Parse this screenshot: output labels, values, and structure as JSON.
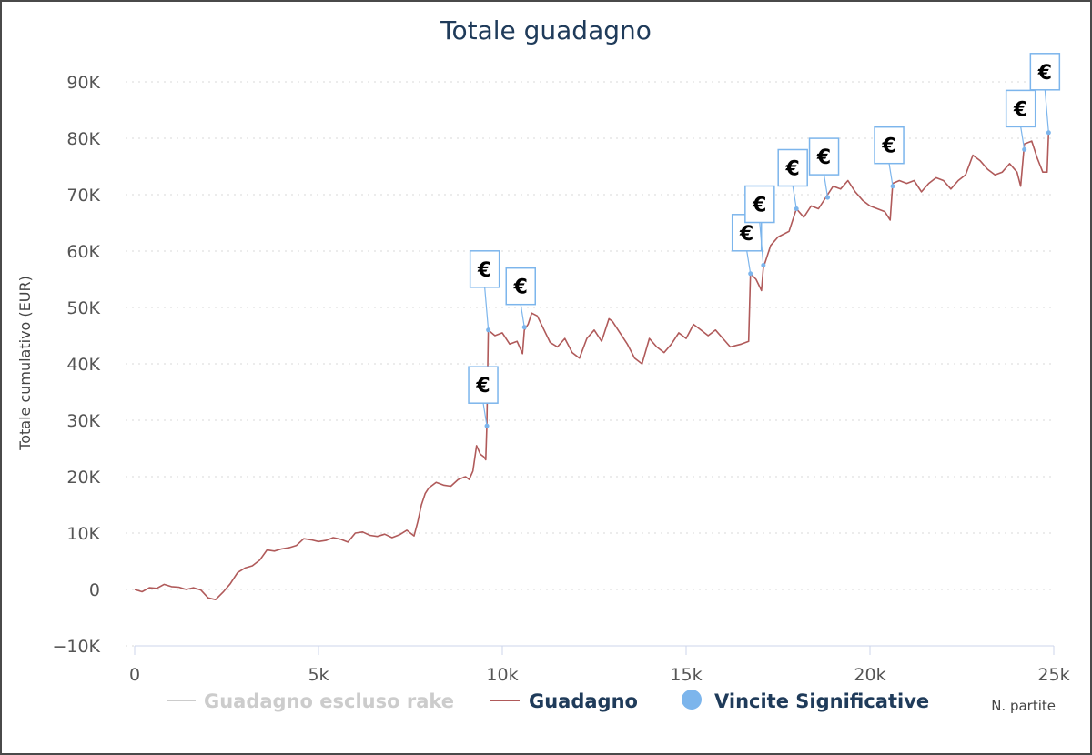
{
  "chart_data": {
    "type": "line",
    "title": "Totale guadagno",
    "xlabel": "N. partite",
    "ylabel": "Totale cumulativo (EUR)",
    "xlim": [
      0,
      25000
    ],
    "ylim": [
      -10000,
      90000
    ],
    "x_ticks": [
      {
        "value": 0,
        "label": "0"
      },
      {
        "value": 5000,
        "label": "5k"
      },
      {
        "value": 10000,
        "label": "10k"
      },
      {
        "value": 15000,
        "label": "15k"
      },
      {
        "value": 20000,
        "label": "20k"
      },
      {
        "value": 25000,
        "label": "25k"
      }
    ],
    "y_ticks": [
      {
        "value": -10000,
        "label": "−10K"
      },
      {
        "value": 0,
        "label": "0"
      },
      {
        "value": 10000,
        "label": "10K"
      },
      {
        "value": 20000,
        "label": "20K"
      },
      {
        "value": 30000,
        "label": "30K"
      },
      {
        "value": 40000,
        "label": "40K"
      },
      {
        "value": 50000,
        "label": "50K"
      },
      {
        "value": 60000,
        "label": "60K"
      },
      {
        "value": 70000,
        "label": "70K"
      },
      {
        "value": 80000,
        "label": "80K"
      },
      {
        "value": 90000,
        "label": "90K"
      }
    ],
    "grid": "horizontal-dotted",
    "legend": {
      "position": "bottom",
      "items": [
        {
          "label": "Guadagno escluso rake",
          "marker": "line",
          "color": "#cccccc",
          "hidden": true
        },
        {
          "label": "Guadagno",
          "marker": "line",
          "color": "#b05a5a",
          "hidden": false
        },
        {
          "label": "Vincite Significative",
          "marker": "circle",
          "color": "#7cb5ec",
          "hidden": false
        }
      ]
    },
    "series": [
      {
        "name": "Guadagno",
        "color": "#b05a5a",
        "points": [
          [
            0,
            0
          ],
          [
            200,
            -400
          ],
          [
            400,
            300
          ],
          [
            600,
            200
          ],
          [
            800,
            900
          ],
          [
            1000,
            500
          ],
          [
            1200,
            400
          ],
          [
            1400,
            0
          ],
          [
            1600,
            300
          ],
          [
            1800,
            -100
          ],
          [
            2000,
            -1500
          ],
          [
            2200,
            -1800
          ],
          [
            2400,
            -500
          ],
          [
            2600,
            1000
          ],
          [
            2800,
            3000
          ],
          [
            3000,
            3800
          ],
          [
            3200,
            4200
          ],
          [
            3400,
            5200
          ],
          [
            3600,
            7000
          ],
          [
            3800,
            6800
          ],
          [
            4000,
            7200
          ],
          [
            4200,
            7400
          ],
          [
            4400,
            7800
          ],
          [
            4600,
            9000
          ],
          [
            4800,
            8800
          ],
          [
            5000,
            8500
          ],
          [
            5200,
            8700
          ],
          [
            5400,
            9200
          ],
          [
            5600,
            8900
          ],
          [
            5800,
            8400
          ],
          [
            6000,
            10000
          ],
          [
            6200,
            10200
          ],
          [
            6400,
            9600
          ],
          [
            6600,
            9400
          ],
          [
            6800,
            9800
          ],
          [
            7000,
            9200
          ],
          [
            7200,
            9700
          ],
          [
            7400,
            10500
          ],
          [
            7600,
            9500
          ],
          [
            7700,
            12000
          ],
          [
            7800,
            15000
          ],
          [
            7900,
            17000
          ],
          [
            8000,
            18000
          ],
          [
            8200,
            19000
          ],
          [
            8400,
            18500
          ],
          [
            8600,
            18300
          ],
          [
            8800,
            19500
          ],
          [
            9000,
            20000
          ],
          [
            9100,
            19500
          ],
          [
            9200,
            21000
          ],
          [
            9300,
            25500
          ],
          [
            9400,
            24000
          ],
          [
            9500,
            23500
          ],
          [
            9550,
            23000
          ],
          [
            9580,
            29000
          ],
          [
            9620,
            46000
          ],
          [
            9800,
            45000
          ],
          [
            10000,
            45500
          ],
          [
            10200,
            43500
          ],
          [
            10400,
            44000
          ],
          [
            10550,
            41800
          ],
          [
            10600,
            46000
          ],
          [
            10700,
            47000
          ],
          [
            10800,
            49000
          ],
          [
            10950,
            48500
          ],
          [
            11100,
            46500
          ],
          [
            11300,
            43800
          ],
          [
            11500,
            43000
          ],
          [
            11700,
            44500
          ],
          [
            11900,
            42000
          ],
          [
            12100,
            41000
          ],
          [
            12300,
            44500
          ],
          [
            12500,
            46000
          ],
          [
            12700,
            44000
          ],
          [
            12900,
            48000
          ],
          [
            13000,
            47500
          ],
          [
            13200,
            45500
          ],
          [
            13400,
            43500
          ],
          [
            13600,
            41000
          ],
          [
            13800,
            40000
          ],
          [
            14000,
            44500
          ],
          [
            14200,
            43000
          ],
          [
            14400,
            42000
          ],
          [
            14600,
            43500
          ],
          [
            14800,
            45500
          ],
          [
            15000,
            44500
          ],
          [
            15200,
            47000
          ],
          [
            15400,
            46000
          ],
          [
            15600,
            45000
          ],
          [
            15800,
            46000
          ],
          [
            16000,
            44500
          ],
          [
            16200,
            43000
          ],
          [
            16500,
            43500
          ],
          [
            16700,
            44000
          ],
          [
            16750,
            56000
          ],
          [
            16900,
            55000
          ],
          [
            17050,
            53000
          ],
          [
            17100,
            57000
          ],
          [
            17300,
            61000
          ],
          [
            17500,
            62500
          ],
          [
            17800,
            63500
          ],
          [
            18000,
            67500
          ],
          [
            18200,
            66000
          ],
          [
            18400,
            68000
          ],
          [
            18600,
            67500
          ],
          [
            18850,
            70000
          ],
          [
            19000,
            71500
          ],
          [
            19200,
            71000
          ],
          [
            19400,
            72500
          ],
          [
            19600,
            70500
          ],
          [
            19800,
            69000
          ],
          [
            20000,
            68000
          ],
          [
            20200,
            67500
          ],
          [
            20400,
            67000
          ],
          [
            20550,
            65500
          ],
          [
            20620,
            72000
          ],
          [
            20800,
            72500
          ],
          [
            21000,
            72000
          ],
          [
            21200,
            72500
          ],
          [
            21400,
            70500
          ],
          [
            21600,
            72000
          ],
          [
            21800,
            73000
          ],
          [
            22000,
            72500
          ],
          [
            22200,
            71000
          ],
          [
            22400,
            72500
          ],
          [
            22600,
            73500
          ],
          [
            22800,
            77000
          ],
          [
            23000,
            76000
          ],
          [
            23200,
            74500
          ],
          [
            23400,
            73500
          ],
          [
            23600,
            74000
          ],
          [
            23800,
            75500
          ],
          [
            24000,
            74000
          ],
          [
            24100,
            71500
          ],
          [
            24200,
            79000
          ],
          [
            24400,
            79500
          ],
          [
            24550,
            76500
          ],
          [
            24700,
            74000
          ],
          [
            24820,
            74000
          ],
          [
            24860,
            81000
          ]
        ]
      },
      {
        "name": "Vincite Significative",
        "color": "#7cb5ec",
        "points": [
          {
            "x": 9580,
            "y": 29000,
            "label": "€"
          },
          {
            "x": 9620,
            "y": 46000,
            "label": "€"
          },
          {
            "x": 10600,
            "y": 46500,
            "label": "€"
          },
          {
            "x": 16750,
            "y": 56000,
            "label": "€"
          },
          {
            "x": 17100,
            "y": 57500,
            "label": "€"
          },
          {
            "x": 18000,
            "y": 67500,
            "label": "€"
          },
          {
            "x": 18850,
            "y": 69500,
            "label": "€"
          },
          {
            "x": 20620,
            "y": 71500,
            "label": "€"
          },
          {
            "x": 24200,
            "y": 78000,
            "label": "€"
          },
          {
            "x": 24860,
            "y": 81000,
            "label": "€"
          }
        ]
      }
    ]
  }
}
